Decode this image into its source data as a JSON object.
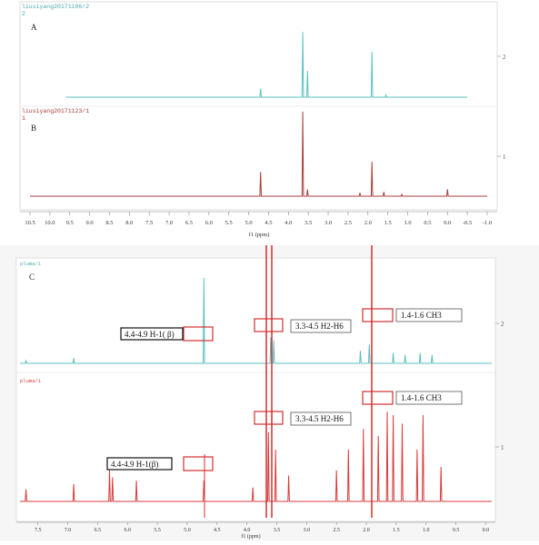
{
  "chart_data": [
    {
      "type": "line",
      "title": "",
      "xlabel": "f1 (ppm)",
      "ylabel": "",
      "x_reversed": true,
      "xlim": [
        10.5,
        -1.0
      ],
      "x_ticks": [
        "10.5",
        "10.0",
        "9.5",
        "9.0",
        "8.5",
        "8.0",
        "7.5",
        "7.0",
        "6.5",
        "6.0",
        "5.5",
        "5.0",
        "4.5",
        "4.0",
        "3.5",
        "3.0",
        "2.5",
        "2.0",
        "1.5",
        "1.0",
        "0.5",
        "0.0",
        "-0.5",
        "-1.0"
      ],
      "right_axis_ticks": [
        "2",
        "1"
      ],
      "series": [
        {
          "file_label": "liusiyang20171106/2",
          "trace_no": "2",
          "panel_label": "A",
          "color": "#5bbfc0",
          "x_range": [
            9.6,
            -0.5
          ],
          "peaks": [
            {
              "x": 4.7,
              "h": 0.12
            },
            {
              "x": 3.64,
              "h": 0.92
            },
            {
              "x": 3.52,
              "h": 0.37
            },
            {
              "x": 1.9,
              "h": 0.64
            },
            {
              "x": 1.55,
              "h": 0.03
            }
          ]
        },
        {
          "file_label": "liusiyang20171123/1",
          "trace_no": "1",
          "panel_label": "B",
          "color": "#a83c3c",
          "x_range": [
            10.5,
            -1.0
          ],
          "peaks": [
            {
              "x": 4.7,
              "h": 0.28
            },
            {
              "x": 3.64,
              "h": 0.98
            },
            {
              "x": 3.52,
              "h": 0.08
            },
            {
              "x": 2.2,
              "h": 0.04
            },
            {
              "x": 1.9,
              "h": 0.4
            },
            {
              "x": 1.6,
              "h": 0.05
            },
            {
              "x": 1.15,
              "h": 0.02
            },
            {
              "x": 0.0,
              "h": 0.08
            }
          ]
        }
      ]
    },
    {
      "type": "line",
      "title": "",
      "panel_label": "C",
      "xlabel": "f1 (ppm)",
      "ylabel": "",
      "x_reversed": true,
      "xlim": [
        7.8,
        -0.1
      ],
      "x_ticks": [
        "7.5",
        "7.0",
        "6.5",
        "6.0",
        "5.5",
        "5.0",
        "4.5",
        "4.0",
        "3.5",
        "3.0",
        "2.5",
        "2.0",
        "1.5",
        "1.0",
        "0.5",
        "0.0"
      ],
      "right_axis_ticks": [
        "2",
        "1"
      ],
      "series": [
        {
          "file_label": "pluma/1",
          "color": "#5bbfc0",
          "peaks": [
            {
              "x": 7.7,
              "h": 0.03
            },
            {
              "x": 6.9,
              "h": 0.05
            },
            {
              "x": 4.72,
              "h": 0.82
            },
            {
              "x": 3.6,
              "h": 0.25
            },
            {
              "x": 3.55,
              "h": 0.22
            },
            {
              "x": 2.1,
              "h": 0.12
            },
            {
              "x": 1.95,
              "h": 0.18
            },
            {
              "x": 1.55,
              "h": 0.1
            },
            {
              "x": 1.35,
              "h": 0.08
            },
            {
              "x": 1.1,
              "h": 0.1
            },
            {
              "x": 0.9,
              "h": 0.08
            }
          ]
        },
        {
          "file_label": "pluma/1",
          "color": "#d83a3a",
          "peaks": [
            {
              "x": 7.7,
              "h": 0.07
            },
            {
              "x": 6.9,
              "h": 0.1
            },
            {
              "x": 6.3,
              "h": 0.18
            },
            {
              "x": 6.25,
              "h": 0.14
            },
            {
              "x": 5.85,
              "h": 0.12
            },
            {
              "x": 4.72,
              "h": 0.12
            },
            {
              "x": 3.9,
              "h": 0.08
            },
            {
              "x": 3.64,
              "h": 0.4
            },
            {
              "x": 3.52,
              "h": 0.3
            },
            {
              "x": 3.3,
              "h": 0.15
            },
            {
              "x": 2.5,
              "h": 0.18
            },
            {
              "x": 2.3,
              "h": 0.3
            },
            {
              "x": 2.05,
              "h": 0.42
            },
            {
              "x": 1.8,
              "h": 0.38
            },
            {
              "x": 1.65,
              "h": 0.52
            },
            {
              "x": 1.55,
              "h": 0.5
            },
            {
              "x": 1.4,
              "h": 0.45
            },
            {
              "x": 1.15,
              "h": 0.3
            },
            {
              "x": 1.05,
              "h": 0.5
            },
            {
              "x": 0.75,
              "h": 0.2
            }
          ]
        }
      ],
      "annotations": [
        {
          "label": "4.4-4.9  H-1( β)",
          "shift": 4.72
        },
        {
          "label": "3.3-4.5 H2-H6",
          "shift": 3.6
        },
        {
          "label": "1.4-1.6   CH3",
          "shift": 1.8
        },
        {
          "label": "1.4-1.6   CH3",
          "shift": 1.8
        },
        {
          "label": "3.3-4.5 H2-H6",
          "shift": 3.6
        },
        {
          "label": "4.4-4.9  H-1(β)",
          "shift": 4.72
        }
      ]
    }
  ]
}
